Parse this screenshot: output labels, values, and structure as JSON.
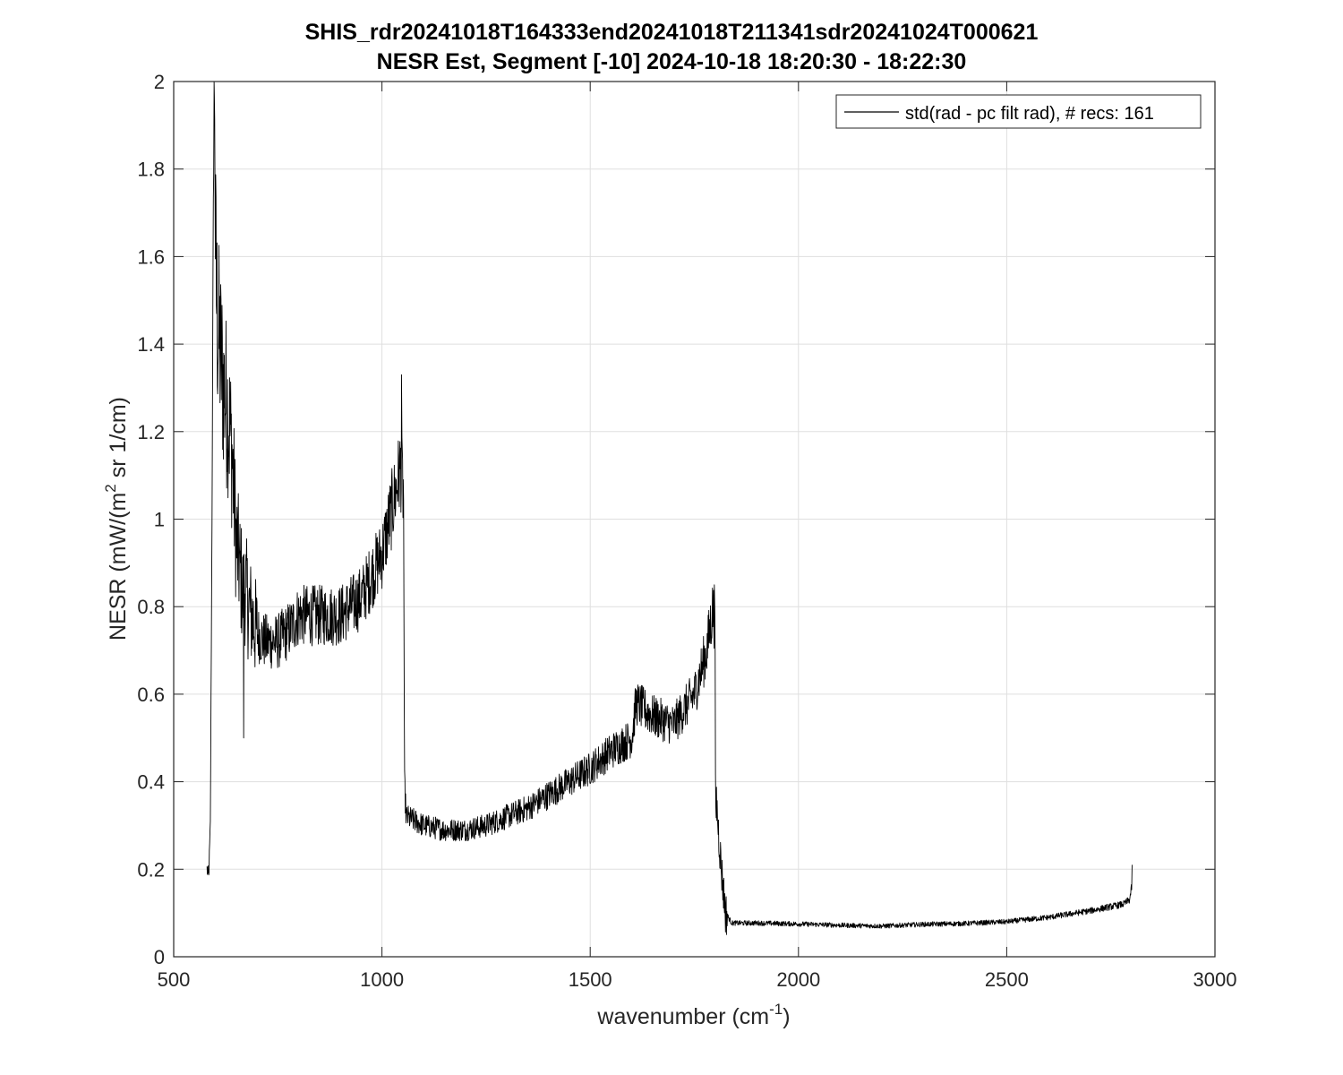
{
  "chart_data": {
    "type": "line",
    "title": "SHIS_rdr20241018T164333end20241018T211341sdr20241024T000621",
    "subtitle": "NESR Est, Segment [-10] 2024-10-18 18:20:30 - 18:22:30",
    "xlabel": {
      "base": "wavenumber (cm",
      "sup": "-1",
      "tail": ")"
    },
    "ylabel": {
      "base": "NESR (mW/(m",
      "sup": "2",
      "tail": " sr 1/cm)"
    },
    "xlim": [
      500,
      3000
    ],
    "ylim": [
      0,
      2
    ],
    "xticks": [
      500,
      1000,
      1500,
      2000,
      2500,
      3000
    ],
    "xtick_labels": [
      "500",
      "1000",
      "1500",
      "2000",
      "2500",
      "3000"
    ],
    "yticks": [
      0,
      0.2,
      0.4,
      0.6,
      0.8,
      1,
      1.2,
      1.4,
      1.6,
      1.8,
      2
    ],
    "ytick_labels": [
      "0",
      "0.2",
      "0.4",
      "0.6",
      "0.8",
      "1",
      "1.2",
      "1.4",
      "1.6",
      "1.8",
      "2"
    ],
    "grid": true,
    "legend": {
      "placement": "top-right",
      "entries": [
        "std(rad - pc filt rad), # recs:  161"
      ]
    },
    "series": [
      {
        "name": "std(rad - pc filt rad), # recs:  161",
        "color": "#000000",
        "x": [
          580,
          584,
          588,
          592,
          595,
          598,
          600,
          605,
          610,
          615,
          620,
          630,
          640,
          650,
          660,
          667,
          670,
          680,
          700,
          720,
          750,
          780,
          800,
          850,
          900,
          950,
          1000,
          1030,
          1045,
          1052,
          1054,
          1058,
          1080,
          1100,
          1150,
          1200,
          1250,
          1300,
          1350,
          1400,
          1450,
          1500,
          1550,
          1600,
          1610,
          1650,
          1700,
          1750,
          1780,
          1795,
          1800,
          1801,
          1803,
          1807,
          1815,
          1825,
          1840,
          1860,
          1900,
          2000,
          2100,
          2200,
          2300,
          2400,
          2500,
          2600,
          2700,
          2780,
          2795,
          2800,
          2801
        ],
        "y": [
          0.2,
          0.18,
          0.3,
          1.0,
          1.7,
          2.0,
          1.6,
          1.45,
          1.4,
          1.35,
          1.3,
          1.25,
          1.15,
          0.95,
          0.88,
          0.82,
          0.85,
          0.8,
          0.74,
          0.72,
          0.72,
          0.75,
          0.78,
          0.78,
          0.78,
          0.82,
          0.92,
          1.05,
          1.12,
          1.05,
          0.4,
          0.32,
          0.31,
          0.3,
          0.29,
          0.29,
          0.3,
          0.32,
          0.34,
          0.37,
          0.4,
          0.43,
          0.47,
          0.5,
          0.58,
          0.55,
          0.53,
          0.6,
          0.7,
          0.8,
          0.72,
          0.28,
          0.36,
          0.3,
          0.2,
          0.1,
          0.077,
          0.077,
          0.077,
          0.075,
          0.072,
          0.07,
          0.074,
          0.076,
          0.08,
          0.09,
          0.105,
          0.12,
          0.13,
          0.16,
          0.21
        ],
        "annotated_spikes": [
          {
            "x": 597,
            "y": 2.0
          },
          {
            "x": 668,
            "y": 0.5
          },
          {
            "x": 1047,
            "y": 1.33
          },
          {
            "x": 1798,
            "y": 0.85
          },
          {
            "x": 2801,
            "y": 0.21
          }
        ]
      }
    ]
  }
}
